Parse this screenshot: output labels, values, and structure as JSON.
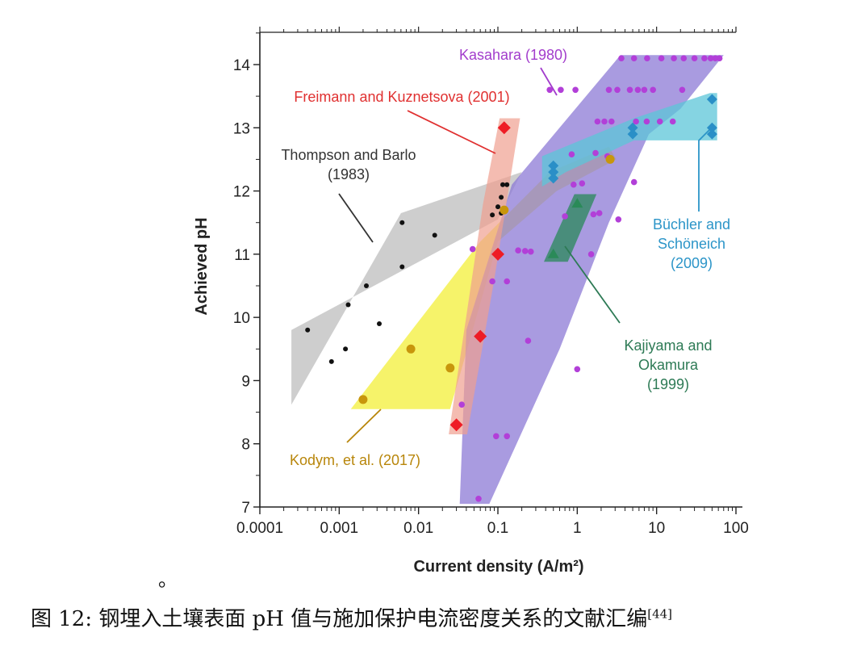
{
  "chart_data": {
    "type": "scatter",
    "xscale": "log",
    "xlim": [
      0.0001,
      100
    ],
    "ylim": [
      7,
      14.5
    ],
    "xlabel": "Current density (A/m²)",
    "ylabel": "Achieved pH",
    "xticks": [
      "0.0001",
      "0.001",
      "0.01",
      "0.1",
      "1",
      "10",
      "100"
    ],
    "yticks": [
      "7",
      "8",
      "9",
      "10",
      "11",
      "12",
      "13",
      "14"
    ],
    "series": [
      {
        "name": "Kasahara (1980)",
        "marker": "circle",
        "color": "#b23fd8",
        "label_color": "#a23ccc",
        "fill": "#8c7ad6",
        "region": [
          [
            0.033,
            7.05
          ],
          [
            0.078,
            7.05
          ],
          [
            0.6,
            9.5
          ],
          [
            2.5,
            11.5
          ],
          [
            8,
            12.9
          ],
          [
            20,
            13.3
          ],
          [
            70,
            14.15
          ],
          [
            35,
            14.15
          ],
          [
            3.5,
            14.15
          ],
          [
            0.15,
            12.1
          ],
          [
            0.04,
            9.8
          ]
        ],
        "points": [
          [
            0.057,
            7.13
          ],
          [
            0.095,
            8.12
          ],
          [
            0.13,
            8.12
          ],
          [
            0.035,
            8.62
          ],
          [
            0.24,
            9.63
          ],
          [
            1.0,
            9.18
          ],
          [
            0.085,
            10.57
          ],
          [
            0.13,
            10.57
          ],
          [
            0.048,
            11.08
          ],
          [
            0.18,
            11.06
          ],
          [
            0.22,
            11.05
          ],
          [
            0.26,
            11.04
          ],
          [
            1.5,
            11.0
          ],
          [
            0.7,
            11.6
          ],
          [
            1.6,
            11.63
          ],
          [
            1.9,
            11.65
          ],
          [
            3.3,
            11.55
          ],
          [
            5.2,
            12.14
          ],
          [
            0.9,
            12.1
          ],
          [
            1.15,
            12.12
          ],
          [
            0.85,
            12.58
          ],
          [
            2.4,
            12.55
          ],
          [
            1.7,
            12.6
          ],
          [
            1.8,
            13.1
          ],
          [
            2.2,
            13.1
          ],
          [
            2.7,
            13.1
          ],
          [
            5.5,
            13.1
          ],
          [
            7.5,
            13.1
          ],
          [
            11,
            13.1
          ],
          [
            16,
            13.1
          ],
          [
            0.45,
            13.6
          ],
          [
            0.62,
            13.6
          ],
          [
            0.95,
            13.6
          ],
          [
            2.5,
            13.6
          ],
          [
            3.2,
            13.6
          ],
          [
            4.6,
            13.6
          ],
          [
            5.8,
            13.6
          ],
          [
            7,
            13.6
          ],
          [
            9,
            13.6
          ],
          [
            21,
            13.6
          ],
          [
            3.6,
            14.1
          ],
          [
            5.2,
            14.1
          ],
          [
            7.6,
            14.1
          ],
          [
            11.5,
            14.1
          ],
          [
            16.5,
            14.1
          ],
          [
            22,
            14.1
          ],
          [
            30,
            14.1
          ],
          [
            40,
            14.1
          ],
          [
            48,
            14.1
          ],
          [
            55,
            14.1
          ],
          [
            62,
            14.1
          ]
        ]
      },
      {
        "name": "Freimann and Kuznetsova (2001)",
        "marker": "diamond",
        "color": "#ee1c25",
        "label_color": "#e03030",
        "fill": "#f0a090",
        "region": [
          [
            0.024,
            8.15
          ],
          [
            0.041,
            8.15
          ],
          [
            0.09,
            10.6
          ],
          [
            0.19,
            13.15
          ],
          [
            0.105,
            13.15
          ],
          [
            0.065,
            11.8
          ]
        ],
        "points": [
          [
            0.03,
            8.3
          ],
          [
            0.06,
            9.7
          ],
          [
            0.1,
            11.0
          ],
          [
            0.12,
            13.0
          ]
        ]
      },
      {
        "name": "Thompson and Barlo\n(1983)",
        "marker": "circle",
        "color": "#111111",
        "label_color": "#333333",
        "fill": "#bdbdbd",
        "region": [
          [
            0.00025,
            8.62
          ],
          [
            0.006,
            11.65
          ],
          [
            0.2,
            12.3
          ],
          [
            0.1,
            11.55
          ],
          [
            0.00025,
            9.8
          ]
        ],
        "points": [
          [
            0.0004,
            9.8
          ],
          [
            0.0008,
            9.3
          ],
          [
            0.0012,
            9.5
          ],
          [
            0.0013,
            10.2
          ],
          [
            0.0022,
            10.5
          ],
          [
            0.0032,
            9.9
          ],
          [
            0.0062,
            10.8
          ],
          [
            0.0062,
            11.5
          ],
          [
            0.016,
            11.3
          ],
          [
            0.085,
            11.62
          ],
          [
            0.1,
            11.75
          ],
          [
            0.11,
            11.9
          ],
          [
            0.115,
            12.1
          ],
          [
            0.13,
            12.1
          ],
          [
            0.12,
            11.7
          ],
          [
            0.11,
            11.65
          ]
        ]
      },
      {
        "name": "Kodym, et al. (2017)",
        "marker": "circle",
        "color": "#c8960c",
        "label_color": "#b8860b",
        "fill": "#f4f045",
        "region": [
          [
            0.0014,
            8.55
          ],
          [
            0.025,
            8.55
          ],
          [
            0.1,
            11.2
          ],
          [
            0.55,
            12.0
          ],
          [
            3.1,
            12.5
          ],
          [
            2.5,
            12.7
          ],
          [
            0.45,
            12.3
          ],
          [
            0.06,
            11.2
          ]
        ],
        "points": [
          [
            0.002,
            8.7
          ],
          [
            0.008,
            9.5
          ],
          [
            0.025,
            9.2
          ],
          [
            0.12,
            11.7
          ],
          [
            2.6,
            12.5
          ]
        ]
      },
      {
        "name": "Büchler and\nSchöneich\n(2009)",
        "marker": "diamond",
        "color": "#2a8fc7",
        "label_color": "#2c95c8",
        "fill": "#5cc6d8",
        "region": [
          [
            0.36,
            12.07
          ],
          [
            0.72,
            12.3
          ],
          [
            5.2,
            12.8
          ],
          [
            58,
            12.8
          ],
          [
            58,
            13.55
          ],
          [
            47,
            13.55
          ],
          [
            5.2,
            13.15
          ],
          [
            0.36,
            12.55
          ]
        ],
        "points": [
          [
            0.5,
            12.2
          ],
          [
            0.5,
            12.3
          ],
          [
            0.5,
            12.4
          ],
          [
            5,
            12.9
          ],
          [
            5,
            13.0
          ],
          [
            50,
            12.9
          ],
          [
            50,
            13.0
          ],
          [
            50,
            13.45
          ]
        ]
      },
      {
        "name": "Kajiyama and\nOkamura\n(1999)",
        "marker": "triangle",
        "color": "#2a8a58",
        "label_color": "#2d7a55",
        "fill": "#3e8c70",
        "region": [
          [
            0.38,
            10.88
          ],
          [
            0.76,
            10.88
          ],
          [
            1.75,
            11.95
          ],
          [
            0.92,
            11.95
          ]
        ],
        "points": [
          [
            0.5,
            11.0
          ],
          [
            1.0,
            11.8
          ]
        ]
      }
    ],
    "caption": {
      "text": "图 12:  钢埋入土壤表面 pH 值与施加保护电流密度关系的文献汇编",
      "ref": "[44]"
    },
    "stray_mark": "。"
  }
}
